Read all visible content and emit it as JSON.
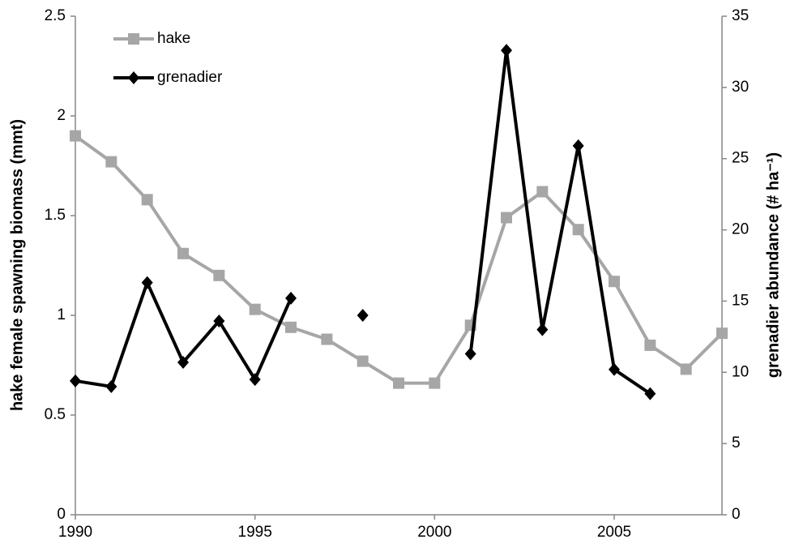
{
  "chart_data": {
    "type": "line",
    "x": [
      1990,
      1991,
      1992,
      1993,
      1994,
      1995,
      1996,
      1997,
      1998,
      1999,
      2000,
      2001,
      2002,
      2003,
      2004,
      2005,
      2006,
      2007,
      2008
    ],
    "series": [
      {
        "name": "hake",
        "color": "#a6a6a6",
        "marker": "square",
        "values": [
          1.9,
          1.77,
          1.58,
          1.31,
          1.2,
          1.03,
          0.94,
          0.88,
          0.77,
          0.66,
          0.66,
          0.95,
          1.49,
          1.62,
          1.43,
          1.17,
          0.85,
          0.73,
          0.91
        ]
      },
      {
        "name": "grenadier",
        "color": "#000000",
        "marker": "diamond",
        "axis": "y2",
        "values": [
          9.4,
          9.0,
          16.3,
          10.7,
          13.6,
          9.5,
          15.2,
          null,
          14.0,
          null,
          null,
          11.3,
          32.6,
          13.0,
          25.9,
          10.2,
          8.5,
          null,
          null
        ]
      }
    ],
    "ylabel": "hake female spawning biomass (mmt)",
    "y2label": "grenadier abundance (# ha⁻¹)",
    "xlim": [
      1990,
      2008
    ],
    "xticks": [
      1990,
      1995,
      2000,
      2005
    ],
    "ylim": [
      0,
      2.5
    ],
    "yticks": [
      0,
      0.5,
      1,
      1.5,
      2,
      2.5
    ],
    "y2lim": [
      0,
      35
    ],
    "y2ticks": [
      0,
      5,
      10,
      15,
      20,
      25,
      30,
      35
    ],
    "grid": false,
    "legend": "upper left"
  }
}
